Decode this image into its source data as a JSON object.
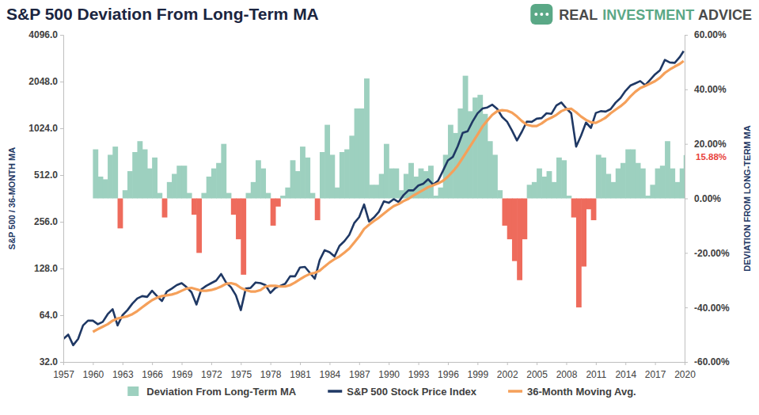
{
  "chart_data": {
    "type": "line",
    "title": "S&P 500 Deviation From Long-Term MA",
    "logo": [
      "REAL",
      "INVESTMENT",
      "ADVICE"
    ],
    "ylabel": "S&P 500 / 36-MONTH MA",
    "y2label": "DEVIATION FROM LONG-TERM MA",
    "log": "y",
    "grid": false,
    "legend": "bottom",
    "xlim": [
      1957,
      2020
    ],
    "xticks": [
      1957,
      1960,
      1963,
      1966,
      1969,
      1972,
      1975,
      1978,
      1981,
      1984,
      1987,
      1990,
      1993,
      1996,
      1999,
      2002,
      2005,
      2008,
      2011,
      2014,
      2017,
      2020
    ],
    "ylim": [
      32,
      4096
    ],
    "yticks": [
      {
        "value": 32,
        "label": "32.0"
      },
      {
        "value": 64,
        "label": "64.0"
      },
      {
        "value": 128,
        "label": "128.0"
      },
      {
        "value": 256,
        "label": "256.0"
      },
      {
        "value": 512,
        "label": "512.0"
      },
      {
        "value": 1024,
        "label": "1024.0"
      },
      {
        "value": 2048,
        "label": "2048.0"
      },
      {
        "value": 4096,
        "label": "4096.0"
      }
    ],
    "y2lim": [
      -60,
      60
    ],
    "y2ticks": [
      {
        "value": -60,
        "label": "-60.00%"
      },
      {
        "value": -40,
        "label": "-40.00%"
      },
      {
        "value": -20,
        "label": "-20.00%"
      },
      {
        "value": 0,
        "label": "0.00%"
      },
      {
        "value": 20,
        "label": "20.00%"
      },
      {
        "value": 40,
        "label": "40.00%"
      },
      {
        "value": 60,
        "label": "60.00%"
      }
    ],
    "annotations": [
      {
        "text": "15.88%",
        "value": 15.88,
        "axis": "y2",
        "color": "#e8423b"
      }
    ],
    "x": [
      1957,
      1957.5,
      1958,
      1958.5,
      1959,
      1959.5,
      1960,
      1960.5,
      1961,
      1961.5,
      1962,
      1962.5,
      1963,
      1963.5,
      1964,
      1964.5,
      1965,
      1965.5,
      1966,
      1966.5,
      1967,
      1967.5,
      1968,
      1968.5,
      1969,
      1969.5,
      1970,
      1970.5,
      1971,
      1971.5,
      1972,
      1972.5,
      1973,
      1973.5,
      1974,
      1974.5,
      1975,
      1975.5,
      1976,
      1976.5,
      1977,
      1977.5,
      1978,
      1978.5,
      1979,
      1979.5,
      1980,
      1980.5,
      1981,
      1981.5,
      1982,
      1982.5,
      1983,
      1983.5,
      1984,
      1984.5,
      1985,
      1985.5,
      1986,
      1986.5,
      1987,
      1987.5,
      1988,
      1988.5,
      1989,
      1989.5,
      1990,
      1990.5,
      1991,
      1991.5,
      1992,
      1992.5,
      1993,
      1993.5,
      1994,
      1994.5,
      1995,
      1995.5,
      1996,
      1996.5,
      1997,
      1997.5,
      1998,
      1998.5,
      1999,
      1999.5,
      2000,
      2000.5,
      2001,
      2001.5,
      2002,
      2002.5,
      2003,
      2003.5,
      2004,
      2004.5,
      2005,
      2005.5,
      2006,
      2006.5,
      2007,
      2007.5,
      2008,
      2008.5,
      2009,
      2009.5,
      2010,
      2010.5,
      2011,
      2011.5,
      2012,
      2012.5,
      2013,
      2013.5,
      2014,
      2014.5,
      2015,
      2015.5,
      2016,
      2016.5,
      2017,
      2017.5,
      2018,
      2018.5,
      2019,
      2019.5,
      2019.9
    ],
    "series": [
      {
        "name": "Deviation From Long-Term MA",
        "type": "bar",
        "axis": "y2",
        "values": [
          null,
          null,
          null,
          null,
          null,
          null,
          18,
          8,
          7,
          16,
          19,
          -11,
          3,
          10,
          17,
          21,
          18,
          11,
          15,
          2,
          -7,
          6,
          9,
          12,
          12,
          2,
          -6,
          -20,
          2,
          8,
          11,
          13,
          20,
          2,
          -6,
          -15,
          -28,
          2,
          6,
          14,
          11,
          2,
          -10,
          -3,
          1,
          4,
          14,
          10,
          19,
          15,
          2,
          -8,
          17,
          27,
          16,
          4,
          17,
          18,
          23,
          33,
          33,
          44,
          5,
          5,
          9,
          20,
          11,
          11,
          3,
          9,
          13,
          8,
          11,
          10,
          12,
          1,
          4,
          16,
          27,
          24,
          33,
          45,
          32,
          37,
          38,
          31,
          21,
          16,
          3,
          -10,
          -15,
          -23,
          -30,
          -15,
          5,
          6,
          11,
          8,
          10,
          6,
          15,
          14,
          1,
          -7,
          -40,
          -25,
          -4,
          -8,
          16,
          15,
          9,
          6,
          11,
          13,
          18,
          18,
          13,
          11,
          1,
          5,
          11,
          12,
          21,
          11,
          6,
          11,
          15.88
        ],
        "colors": [
          null,
          null,
          null,
          null,
          null,
          null,
          "#9dd0bf",
          "#9dd0bf",
          "#9dd0bf",
          "#9dd0bf",
          "#9dd0bf",
          "#ee6b5c",
          "#9dd0bf",
          "#9dd0bf",
          "#9dd0bf",
          "#9dd0bf",
          "#9dd0bf",
          "#9dd0bf",
          "#9dd0bf",
          "#9dd0bf",
          "#ee6b5c",
          "#9dd0bf",
          "#9dd0bf",
          "#9dd0bf",
          "#9dd0bf",
          "#9dd0bf",
          "#ee6b5c",
          "#ee6b5c",
          "#9dd0bf",
          "#9dd0bf",
          "#9dd0bf",
          "#9dd0bf",
          "#9dd0bf",
          "#9dd0bf",
          "#ee6b5c",
          "#ee6b5c",
          "#ee6b5c",
          "#9dd0bf",
          "#9dd0bf",
          "#9dd0bf",
          "#9dd0bf",
          "#9dd0bf",
          "#ee6b5c",
          "#ee6b5c",
          "#9dd0bf",
          "#9dd0bf",
          "#9dd0bf",
          "#9dd0bf",
          "#9dd0bf",
          "#9dd0bf",
          "#9dd0bf",
          "#ee6b5c",
          "#9dd0bf",
          "#9dd0bf",
          "#9dd0bf",
          "#9dd0bf",
          "#9dd0bf",
          "#9dd0bf",
          "#9dd0bf",
          "#9dd0bf",
          "#9dd0bf",
          "#9dd0bf",
          "#9dd0bf",
          "#9dd0bf",
          "#9dd0bf",
          "#9dd0bf",
          "#9dd0bf",
          "#9dd0bf",
          "#9dd0bf",
          "#9dd0bf",
          "#9dd0bf",
          "#9dd0bf",
          "#9dd0bf",
          "#9dd0bf",
          "#9dd0bf",
          "#9dd0bf",
          "#9dd0bf",
          "#9dd0bf",
          "#9dd0bf",
          "#9dd0bf",
          "#9dd0bf",
          "#9dd0bf",
          "#9dd0bf",
          "#9dd0bf",
          "#9dd0bf",
          "#9dd0bf",
          "#9dd0bf",
          "#9dd0bf",
          "#9dd0bf",
          "#ee6b5c",
          "#ee6b5c",
          "#ee6b5c",
          "#ee6b5c",
          "#ee6b5c",
          "#9dd0bf",
          "#9dd0bf",
          "#9dd0bf",
          "#9dd0bf",
          "#9dd0bf",
          "#9dd0bf",
          "#9dd0bf",
          "#9dd0bf",
          "#9dd0bf",
          "#ee6b5c",
          "#ee6b5c",
          "#ee6b5c",
          "#ee6b5c",
          "#ee6b5c",
          "#9dd0bf",
          "#9dd0bf",
          "#9dd0bf",
          "#9dd0bf",
          "#9dd0bf",
          "#9dd0bf",
          "#9dd0bf",
          "#9dd0bf",
          "#9dd0bf",
          "#9dd0bf",
          "#9dd0bf",
          "#9dd0bf",
          "#9dd0bf",
          "#9dd0bf",
          "#9dd0bf",
          "#9dd0bf",
          "#9dd0bf",
          "#9dd0bf",
          "#9dd0bf"
        ]
      },
      {
        "name": "S&P 500 Stock Price Index",
        "type": "line",
        "color": "#1f3864",
        "values": [
          45,
          48,
          41,
          45,
          55,
          59,
          59,
          56,
          58,
          65,
          70,
          55,
          64,
          69,
          76,
          82,
          85,
          84,
          92,
          85,
          79,
          91,
          95,
          100,
          103,
          97,
          90,
          75,
          94,
          99,
          103,
          107,
          118,
          104,
          97,
          86,
          69,
          95,
          96,
          104,
          103,
          100,
          89,
          96,
          99,
          102,
          114,
          114,
          130,
          131,
          120,
          110,
          145,
          168,
          163,
          153,
          179,
          192,
          211,
          251,
          274,
          331,
          257,
          273,
          297,
          346,
          339,
          358,
          343,
          380,
          408,
          408,
          438,
          450,
          481,
          444,
          470,
          545,
          636,
          670,
          786,
          957,
          980,
          1133,
          1279,
          1372,
          1394,
          1454,
          1366,
          1211,
          1130,
          990,
          855,
          974,
          1131,
          1126,
          1181,
          1191,
          1280,
          1270,
          1438,
          1503,
          1378,
          1280,
          780,
          919,
          1115,
          1030,
          1286,
          1320,
          1312,
          1362,
          1498,
          1606,
          1782,
          1930,
          1995,
          2063,
          1940,
          2099,
          2278,
          2423,
          2823,
          2718,
          2704,
          2941,
          3220
        ]
      },
      {
        "name": "36-Month Moving Avg.",
        "type": "line",
        "color": "#f5a05a",
        "values": [
          null,
          null,
          null,
          null,
          null,
          null,
          50,
          52,
          54,
          56,
          59,
          61,
          62,
          63,
          65,
          68,
          72,
          76,
          80,
          83,
          85,
          86,
          87,
          89,
          92,
          95,
          96,
          94,
          92,
          92,
          93,
          95,
          98,
          102,
          103,
          101,
          96,
          93,
          91,
          91,
          93,
          98,
          99,
          99,
          98,
          98,
          100,
          104,
          109,
          114,
          118,
          120,
          124,
          132,
          140,
          147,
          153,
          162,
          172,
          188,
          206,
          230,
          245,
          259,
          272,
          289,
          306,
          323,
          333,
          348,
          360,
          378,
          394,
          410,
          428,
          440,
          452,
          470,
          500,
          540,
          590,
          660,
          740,
          830,
          930,
          1050,
          1150,
          1250,
          1320,
          1340,
          1330,
          1290,
          1220,
          1140,
          1080,
          1060,
          1060,
          1100,
          1160,
          1200,
          1250,
          1320,
          1360,
          1370,
          1300,
          1220,
          1160,
          1120,
          1110,
          1150,
          1200,
          1280,
          1350,
          1420,
          1510,
          1640,
          1760,
          1860,
          1920,
          1990,
          2060,
          2170,
          2330,
          2450,
          2560,
          2660,
          2780
        ]
      }
    ]
  }
}
